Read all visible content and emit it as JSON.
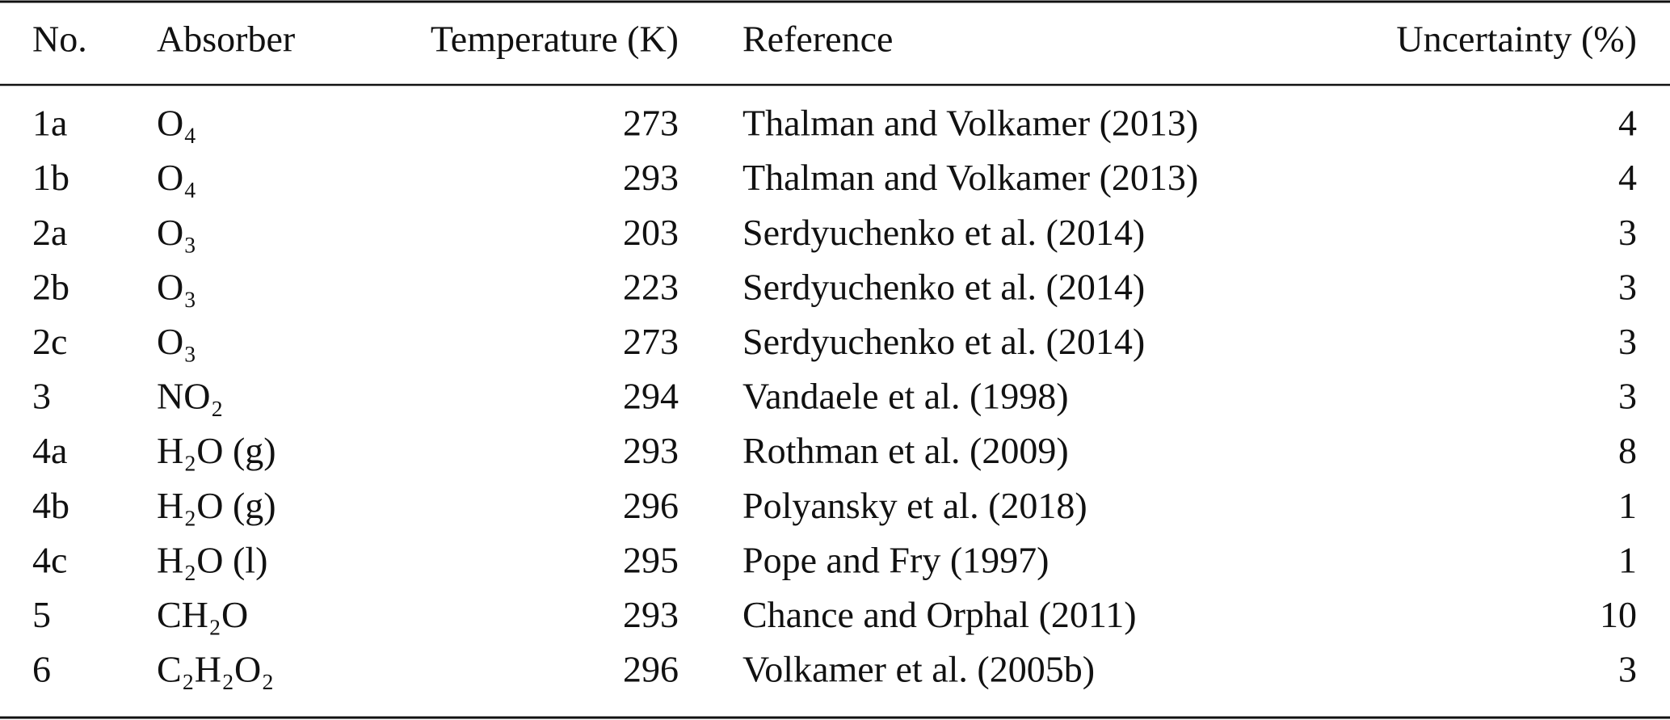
{
  "table": {
    "header": [
      "No.",
      "Absorber",
      "Temperature (K)",
      "Reference",
      "Uncertainty (%)"
    ],
    "rows": [
      [
        "1a",
        "O₄",
        273,
        "Thalman and Volkamer (2013)",
        4
      ],
      [
        "1b",
        "O₄",
        293,
        "Thalman and Volkamer (2013)",
        4
      ],
      [
        "2a",
        "O₃",
        203,
        "Serdyuchenko et al. (2014)",
        3
      ],
      [
        "2b",
        "O₃",
        223,
        "Serdyuchenko et al. (2014)",
        3
      ],
      [
        "2c",
        "O₃",
        273,
        "Serdyuchenko et al. (2014)",
        3
      ],
      [
        "3",
        "NO₂",
        294,
        "Vandaele et al. (1998)",
        3
      ],
      [
        "4a",
        "H₂O (g)",
        293,
        "Rothman et al. (2009)",
        8
      ],
      [
        "4b",
        "H₂O (g)",
        296,
        "Polyansky et al. (2018)",
        1
      ],
      [
        "4c",
        "H₂O (l)",
        295,
        "Pope and Fry (1997)",
        1
      ],
      [
        "5",
        "CH₂O",
        293,
        "Chance and Orphal (2011)",
        10
      ],
      [
        "6",
        "C₂H₂O₂",
        296,
        "Volkamer et al. (2005b)",
        3
      ]
    ]
  }
}
